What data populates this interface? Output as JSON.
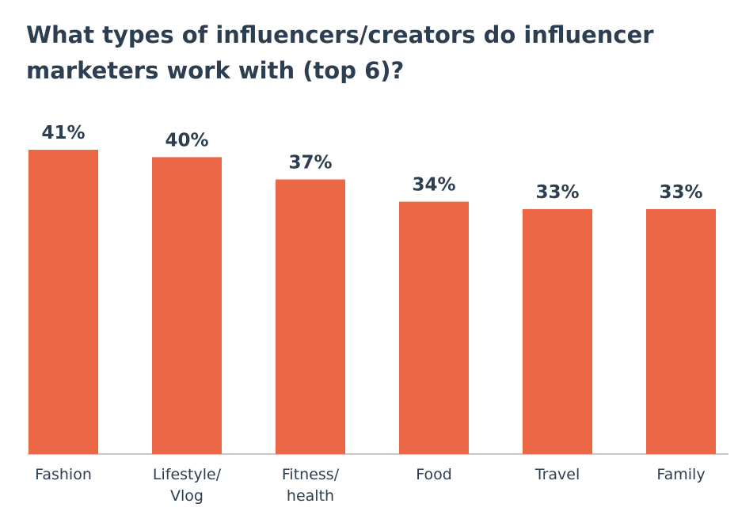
{
  "chart_data": {
    "type": "bar",
    "title": "What types of influencers/creators do influencer marketers work with (top 6)?",
    "categories": [
      "Fashion",
      "Lifestyle/ Vlog",
      "Fitness/ health",
      "Food",
      "Travel",
      "Family"
    ],
    "values": [
      41,
      40,
      37,
      34,
      33,
      33
    ],
    "value_labels": [
      "41%",
      "40%",
      "37%",
      "34%",
      "33%",
      "33%"
    ],
    "color": "#ec6745"
  }
}
